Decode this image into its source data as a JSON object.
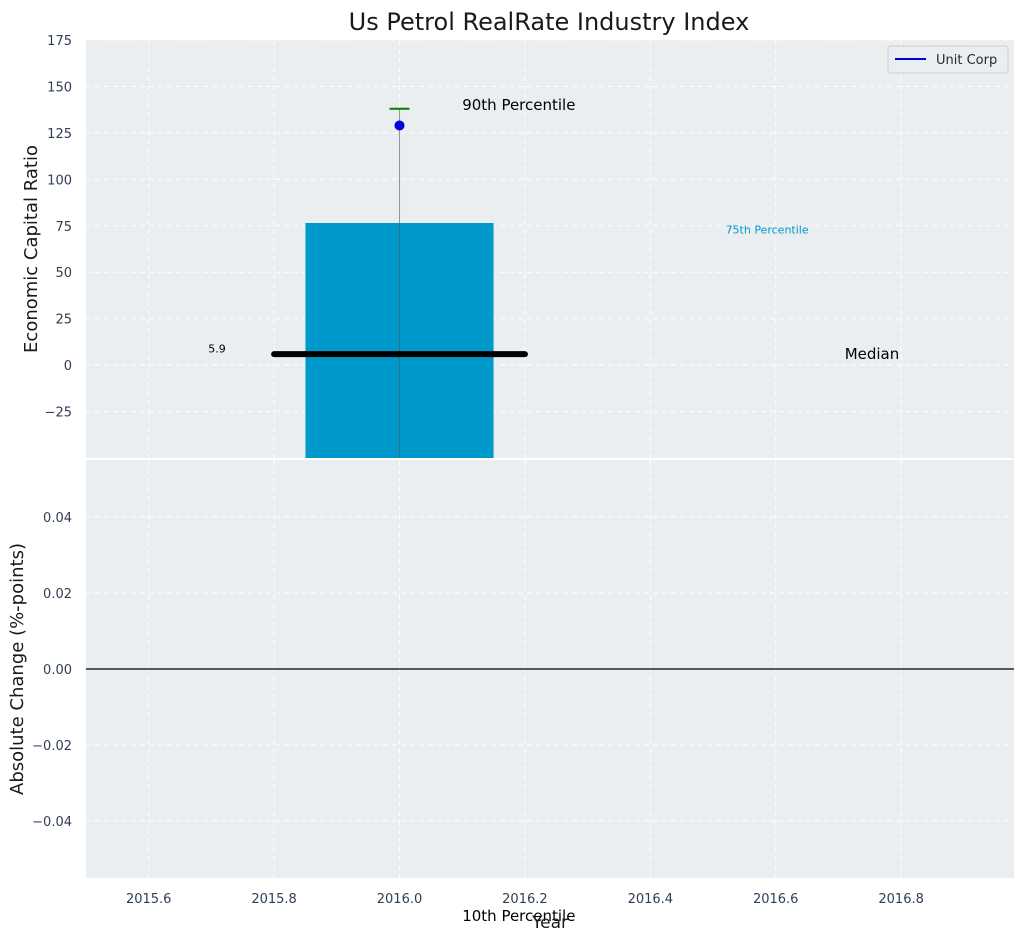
{
  "chart_data": {
    "type": "bar",
    "title": "Us Petrol RealRate Industry Index",
    "xlabel": "Year",
    "top_panel": {
      "ylabel": "Economic Capital Ratio",
      "ylim": [
        -50,
        175
      ],
      "yticks": [
        -25,
        0,
        25,
        50,
        75,
        100,
        125,
        150,
        175
      ],
      "bars": [
        {
          "x": 2016.0,
          "from": -50,
          "to": 76.5,
          "width": 0.3,
          "color": "#0099cc"
        }
      ],
      "median_line": {
        "x_start": 2015.8,
        "x_end": 2016.2,
        "value": 5.9,
        "color": "#000000"
      },
      "whisker": {
        "x": 2016.0,
        "from": -50,
        "to": 138,
        "cap": 138,
        "cap_color": "#008000"
      },
      "series": [
        {
          "name": "Unit Corp",
          "x": [
            2016.0
          ],
          "values": [
            129
          ],
          "color": "#0000dd"
        }
      ]
    },
    "bottom_panel": {
      "ylabel": "Absolute Change (%-points)",
      "ylim": [
        -0.055,
        0.055
      ],
      "yticks": [
        -0.04,
        -0.02,
        0.0,
        0.02,
        0.04
      ],
      "ytick_labels": [
        "−0.04",
        "−0.02",
        "0.00",
        "0.02",
        "0.04"
      ],
      "zero_line": 0.0
    },
    "xlim": [
      2015.5,
      2016.98
    ],
    "xticks": [
      2015.6,
      2015.8,
      2016.0,
      2016.2,
      2016.4,
      2016.6,
      2016.8
    ],
    "xtick_labels": [
      "2015.6",
      "2015.8",
      "2016.0",
      "2016.2",
      "2016.4",
      "2016.6",
      "2016.8"
    ],
    "annotations": [
      {
        "text": "90th Percentile",
        "x": 2016.1,
        "y": 140,
        "color": "#000000",
        "size": "large"
      },
      {
        "text": "75th Percentile",
        "x": 2016.52,
        "y": 73,
        "color": "#0099cc",
        "size": "small"
      },
      {
        "text": "5.9",
        "x": 2015.695,
        "y": 9,
        "color": "#000000",
        "size": "small"
      },
      {
        "text": "Median",
        "x": 2016.71,
        "y": 5.9,
        "color": "#000000",
        "size": "large"
      },
      {
        "text": "10th Percentile",
        "x": 2016.1,
        "y": "below",
        "color": "#000000",
        "size": "large"
      }
    ],
    "legend": {
      "placement": "top-right",
      "entries": [
        "Unit Corp"
      ]
    },
    "grid": true,
    "colors": {
      "panel_bg": "#eaeef0",
      "grid": "#ffffff",
      "bar": "#0099cc",
      "series": "#0000dd"
    }
  }
}
